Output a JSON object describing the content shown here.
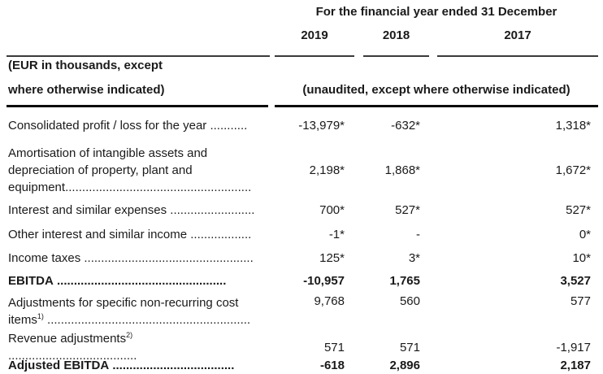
{
  "header": {
    "title": "For the financial year ended 31 December",
    "years": [
      "2019",
      "2018",
      "2017"
    ],
    "left_note_line1": "(EUR in thousands, except",
    "left_note_line2": "where otherwise indicated)",
    "right_note": "(unaudited, except where otherwise indicated)"
  },
  "table": {
    "rows": [
      {
        "label": "Consolidated profit / loss for the year",
        "footnote": "",
        "dots": " ...........",
        "values": [
          "-13,979*",
          "-632*",
          "1,318*"
        ]
      },
      {
        "label": "Amortisation of intangible assets and depreciation of property, plant and equipment",
        "footnote": "",
        "dots": ".......................................................",
        "values": [
          "2,198*",
          "1,868*",
          "1,672*"
        ]
      },
      {
        "label": "Interest and similar expenses",
        "footnote": "",
        "dots": " .........................",
        "values": [
          "700*",
          "527*",
          "527*"
        ]
      },
      {
        "label": "Other interest and similar income",
        "footnote": "",
        "dots": " ..................",
        "values": [
          "-1*",
          "-",
          "0*"
        ]
      },
      {
        "label": "Income taxes",
        "footnote": "",
        "dots": " ..................................................",
        "values": [
          "125*",
          "3*",
          "10*"
        ]
      },
      {
        "label": "EBITDA",
        "footnote": "",
        "dots": " ..................................................",
        "values": [
          "-10,957",
          "1,765",
          "3,527"
        ]
      },
      {
        "label": "Adjustments for specific non-recurring cost items",
        "footnote": "1)",
        "dots": " ............................................................",
        "values": [
          "9,768",
          "560",
          "577"
        ]
      },
      {
        "label": "Revenue adjustments",
        "footnote": "2)",
        "dots": " ......................................",
        "values": [
          "571",
          "571",
          "-1,917"
        ]
      },
      {
        "label": "Adjusted EBITDA",
        "footnote": "",
        "dots": " ....................................",
        "values": [
          "-618",
          "2,896",
          "2,187"
        ]
      }
    ]
  }
}
